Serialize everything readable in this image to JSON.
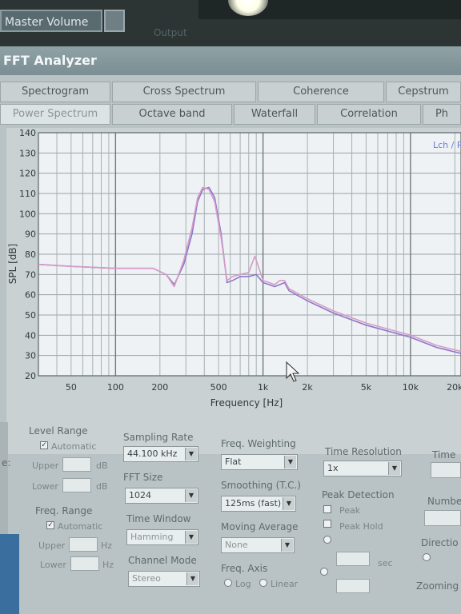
{
  "top": {
    "master_volume": "Master Volume",
    "output_label": "Output"
  },
  "window": {
    "title": "FFT Analyzer"
  },
  "tabs_row1": [
    "Spectrogram",
    "Cross Spectrum",
    "Coherence",
    "Cepstrum"
  ],
  "tabs_row2": [
    "Power Spectrum",
    "Octave band",
    "Waterfall",
    "Correlation",
    "Ph"
  ],
  "legend": "Lch / R",
  "chart_data": {
    "type": "line",
    "xlabel": "Frequency [Hz]",
    "ylabel": "SPL [dB]",
    "xscale": "log",
    "xlim": [
      30,
      22000
    ],
    "ylim": [
      20,
      140
    ],
    "x_ticks": [
      "50",
      "100",
      "200",
      "500",
      "1k",
      "2k",
      "5k",
      "10k",
      "20k"
    ],
    "y_ticks": [
      "140",
      "130",
      "120",
      "110",
      "100",
      "90",
      "80",
      "70",
      "60",
      "50",
      "40",
      "30",
      "20"
    ],
    "series": [
      {
        "color": "#8a78c8",
        "points": [
          [
            30,
            75
          ],
          [
            50,
            74
          ],
          [
            100,
            73
          ],
          [
            180,
            73
          ],
          [
            220,
            70
          ],
          [
            250,
            65
          ],
          [
            290,
            75
          ],
          [
            330,
            90
          ],
          [
            360,
            106
          ],
          [
            390,
            112
          ],
          [
            430,
            113
          ],
          [
            470,
            108
          ],
          [
            520,
            90
          ],
          [
            570,
            66
          ],
          [
            620,
            67
          ],
          [
            700,
            69
          ],
          [
            800,
            69
          ],
          [
            900,
            70
          ],
          [
            1000,
            66
          ],
          [
            1100,
            65
          ],
          [
            1200,
            64
          ],
          [
            1300,
            65
          ],
          [
            1400,
            66
          ],
          [
            1500,
            62
          ],
          [
            2000,
            57
          ],
          [
            3000,
            51
          ],
          [
            5000,
            45
          ],
          [
            10000,
            39
          ],
          [
            15000,
            34
          ],
          [
            22000,
            31
          ]
        ]
      },
      {
        "color": "#d89ac8",
        "points": [
          [
            30,
            75
          ],
          [
            50,
            74
          ],
          [
            100,
            73
          ],
          [
            180,
            73
          ],
          [
            220,
            70
          ],
          [
            250,
            64
          ],
          [
            290,
            77
          ],
          [
            330,
            93
          ],
          [
            360,
            108
          ],
          [
            390,
            113
          ],
          [
            430,
            112
          ],
          [
            470,
            106
          ],
          [
            520,
            88
          ],
          [
            570,
            67
          ],
          [
            620,
            69
          ],
          [
            700,
            70
          ],
          [
            800,
            71
          ],
          [
            880,
            79
          ],
          [
            950,
            72
          ],
          [
            1000,
            67
          ],
          [
            1100,
            66
          ],
          [
            1200,
            65
          ],
          [
            1300,
            67
          ],
          [
            1400,
            67
          ],
          [
            1500,
            63
          ],
          [
            2000,
            58
          ],
          [
            3000,
            52
          ],
          [
            5000,
            46
          ],
          [
            10000,
            40
          ],
          [
            15000,
            35
          ],
          [
            22000,
            32
          ]
        ]
      }
    ]
  },
  "controls": {
    "level_range": {
      "title": "Level Range",
      "automatic": "Automatic",
      "upper": "Upper",
      "lower": "Lower",
      "unit": "dB",
      "auto_checked": "✓"
    },
    "freq_range": {
      "title": "Freq. Range",
      "automatic": "Automatic",
      "upper": "Upper",
      "lower": "Lower",
      "unit": "Hz",
      "auto_checked": "✓"
    },
    "sampling_rate": {
      "title": "Sampling Rate",
      "value": "44.100 kHz"
    },
    "fft_size": {
      "title": "FFT Size",
      "value": "1024"
    },
    "time_window": {
      "title": "Time Window",
      "value": "Hamming"
    },
    "channel_mode": {
      "title": "Channel Mode",
      "value": "Stereo"
    },
    "freq_weighting": {
      "title": "Freq. Weighting",
      "value": "Flat"
    },
    "smoothing": {
      "title": "Smoothing (T.C.)",
      "value": "125ms (fast)"
    },
    "moving_average": {
      "title": "Moving Average",
      "value": "None"
    },
    "freq_axis": {
      "title": "Freq. Axis",
      "log": "Log",
      "linear": "Linear"
    },
    "time_resolution": {
      "title": "Time Resolution",
      "value": "1x"
    },
    "peak_detection": {
      "title": "Peak Detection",
      "peak": "Peak",
      "peak_hold": "Peak Hold",
      "sec": "sec"
    },
    "time_cut": {
      "title": "Time /"
    },
    "number": {
      "title": "Numbe"
    },
    "direction": {
      "title": "Directio"
    },
    "zooming": {
      "title": "Zooming"
    },
    "left_edge_label": "e:"
  }
}
